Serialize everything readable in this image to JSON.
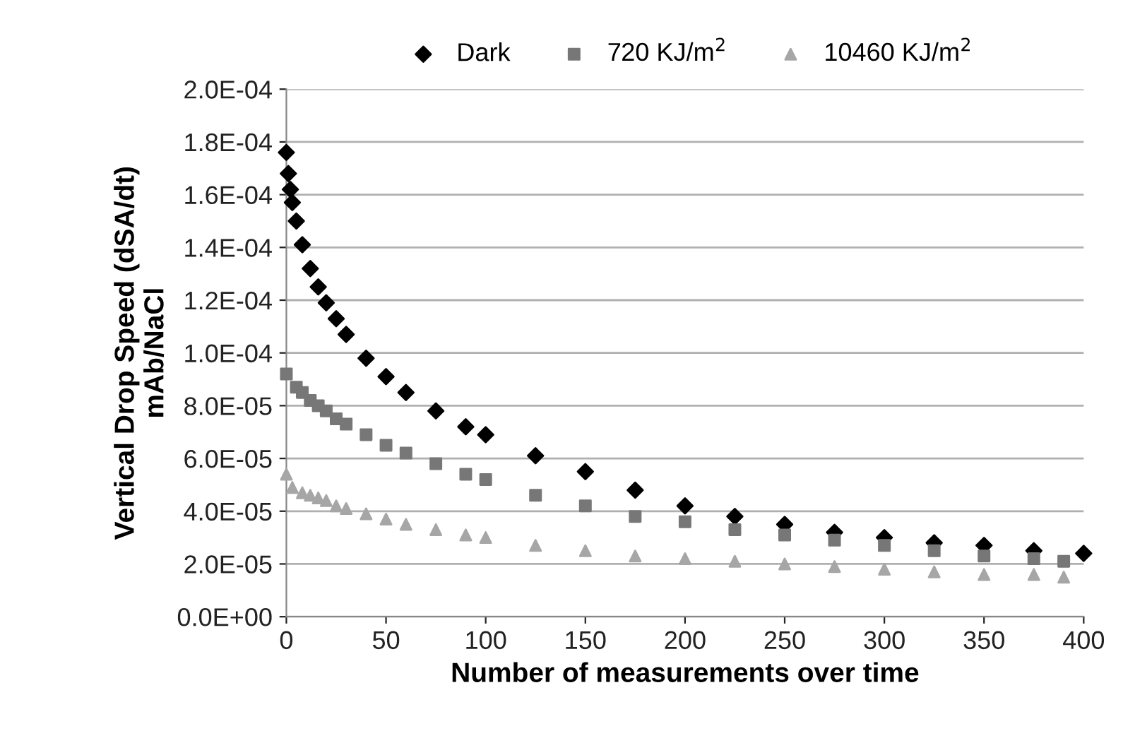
{
  "chart_data": {
    "type": "scatter",
    "xlabel": "Number of measurements over time",
    "ylabel": "Vertical Drop Speed (dSA/dt)\nmAb/NaCl",
    "xlim": [
      0,
      400
    ],
    "xticks": [
      0,
      50,
      100,
      150,
      200,
      250,
      300,
      350,
      400
    ],
    "ylim": [
      0,
      0.0002
    ],
    "yticks": [
      {
        "value": 0,
        "label": "0.0E+00"
      },
      {
        "value": 2e-05,
        "label": "2.0E-05"
      },
      {
        "value": 4e-05,
        "label": "4.0E-05"
      },
      {
        "value": 6e-05,
        "label": "6.0E-05"
      },
      {
        "value": 8e-05,
        "label": "8.0E-05"
      },
      {
        "value": 0.0001,
        "label": "1.0E-04"
      },
      {
        "value": 0.00012,
        "label": "1.2E-04"
      },
      {
        "value": 0.00014,
        "label": "1.4E-04"
      },
      {
        "value": 0.00016,
        "label": "1.6E-04"
      },
      {
        "value": 0.00018,
        "label": "1.8E-04"
      },
      {
        "value": 0.0002,
        "label": "2.0E-04"
      }
    ],
    "grid": "y",
    "legend": "top",
    "series": [
      {
        "name": "Dark",
        "color": "#000000",
        "marker": "diamond",
        "x": [
          0,
          1,
          2,
          3,
          5,
          8,
          12,
          16,
          20,
          25,
          30,
          40,
          50,
          60,
          75,
          90,
          100,
          125,
          150,
          175,
          200,
          225,
          250,
          275,
          300,
          325,
          350,
          375,
          400
        ],
        "values": [
          0.000176,
          0.000168,
          0.000162,
          0.000157,
          0.00015,
          0.000141,
          0.000132,
          0.000125,
          0.000119,
          0.000113,
          0.000107,
          9.8e-05,
          9.1e-05,
          8.5e-05,
          7.8e-05,
          7.2e-05,
          6.9e-05,
          6.1e-05,
          5.5e-05,
          4.8e-05,
          4.2e-05,
          3.8e-05,
          3.5e-05,
          3.2e-05,
          3e-05,
          2.8e-05,
          2.7e-05,
          2.5e-05,
          2.4e-05
        ]
      },
      {
        "name": "720 KJ/m$^{2}$",
        "color": "#777777",
        "marker": "square",
        "x": [
          0,
          5,
          8,
          12,
          16,
          20,
          25,
          30,
          40,
          50,
          60,
          75,
          90,
          100,
          125,
          150,
          175,
          200,
          225,
          250,
          275,
          300,
          325,
          350,
          375,
          390
        ],
        "values": [
          9.2e-05,
          8.7e-05,
          8.5e-05,
          8.2e-05,
          8e-05,
          7.8e-05,
          7.5e-05,
          7.3e-05,
          6.9e-05,
          6.5e-05,
          6.2e-05,
          5.8e-05,
          5.4e-05,
          5.2e-05,
          4.6e-05,
          4.2e-05,
          3.8e-05,
          3.6e-05,
          3.3e-05,
          3.1e-05,
          2.9e-05,
          2.7e-05,
          2.5e-05,
          2.3e-05,
          2.2e-05,
          2.1e-05
        ]
      },
      {
        "name": "10460 KJ/m$^{2}$",
        "color": "#a6a6a6",
        "marker": "triangle",
        "x": [
          0,
          3,
          8,
          12,
          16,
          20,
          25,
          30,
          40,
          50,
          60,
          75,
          90,
          100,
          125,
          150,
          175,
          200,
          225,
          250,
          275,
          300,
          325,
          350,
          375,
          390
        ],
        "values": [
          5.4e-05,
          4.9e-05,
          4.7e-05,
          4.6e-05,
          4.5e-05,
          4.4e-05,
          4.2e-05,
          4.1e-05,
          3.9e-05,
          3.7e-05,
          3.5e-05,
          3.3e-05,
          3.1e-05,
          3e-05,
          2.7e-05,
          2.5e-05,
          2.3e-05,
          2.2e-05,
          2.1e-05,
          2e-05,
          1.9e-05,
          1.8e-05,
          1.7e-05,
          1.6e-05,
          1.6e-05,
          1.5e-05
        ]
      }
    ]
  }
}
